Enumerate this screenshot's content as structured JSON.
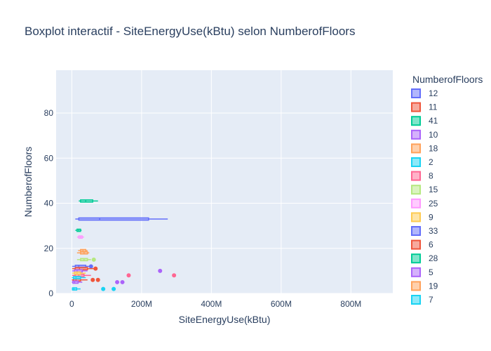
{
  "chart_data": {
    "type": "box",
    "title": "Boxplot interactif - SiteEnergyUse(kBtu) selon NumberofFloors",
    "xlabel": "SiteEnergyUse(kBtu)",
    "ylabel": "NumberofFloors",
    "xlim": [
      -45000000,
      920000000
    ],
    "ylim": [
      0,
      99
    ],
    "x_ticks": [
      {
        "value": 0,
        "label": "0"
      },
      {
        "value": 200000000,
        "label": "200M"
      },
      {
        "value": 400000000,
        "label": "400M"
      },
      {
        "value": 600000000,
        "label": "600M"
      },
      {
        "value": 800000000,
        "label": "800M"
      }
    ],
    "y_ticks": [
      {
        "value": 0,
        "label": "0"
      },
      {
        "value": 20,
        "label": "20"
      },
      {
        "value": 40,
        "label": "40"
      },
      {
        "value": 60,
        "label": "60"
      },
      {
        "value": 80,
        "label": "80"
      }
    ],
    "legend": {
      "title": "NumberofFloors",
      "placement": "right"
    },
    "series": [
      {
        "name": "12",
        "color": "#636efa",
        "floors": 12,
        "box": [
          10000000,
          20000000,
          40000000
        ],
        "whisker": [
          1000000,
          60000000
        ],
        "outliers": [
          55000000
        ]
      },
      {
        "name": "11",
        "color": "#ef553b",
        "floors": 11,
        "box": [
          10000000,
          22000000,
          45000000
        ],
        "whisker": [
          1000000,
          65000000
        ],
        "outliers": [
          68000000
        ]
      },
      {
        "name": "41",
        "color": "#00cc96",
        "floors": 41,
        "box": [
          25000000,
          40000000,
          60000000
        ],
        "whisker": [
          20000000,
          75000000
        ],
        "outliers": []
      },
      {
        "name": "10",
        "color": "#ab63fa",
        "floors": 10,
        "box": [
          8000000,
          15000000,
          30000000
        ],
        "whisker": [
          1000000,
          45000000
        ],
        "outliers": [
          253000000
        ]
      },
      {
        "name": "18",
        "color": "#ffa15a",
        "floors": 18,
        "box": [
          25000000,
          35000000,
          45000000
        ],
        "whisker": [
          15000000,
          50000000
        ],
        "outliers": []
      },
      {
        "name": "2",
        "color": "#19d3f3",
        "floors": 2,
        "box": [
          2000000,
          6000000,
          14000000
        ],
        "whisker": [
          0,
          25000000
        ],
        "outliers": [
          90000000,
          120000000
        ]
      },
      {
        "name": "8",
        "color": "#ff6692",
        "floors": 8,
        "box": [
          10000000,
          20000000,
          35000000
        ],
        "whisker": [
          1000000,
          55000000
        ],
        "outliers": [
          163000000,
          293000000
        ]
      },
      {
        "name": "15",
        "color": "#b6e880",
        "floors": 15,
        "box": [
          25000000,
          35000000,
          45000000
        ],
        "whisker": [
          15000000,
          55000000
        ],
        "outliers": [
          63000000
        ]
      },
      {
        "name": "25",
        "color": "#ff97ff",
        "floors": 25,
        "box": [
          20000000,
          25000000,
          30000000
        ],
        "whisker": [
          15000000,
          35000000
        ],
        "outliers": []
      },
      {
        "name": "9",
        "color": "#fecb52",
        "floors": 9,
        "box": [
          8000000,
          15000000,
          25000000
        ],
        "whisker": [
          1000000,
          40000000
        ],
        "outliers": []
      },
      {
        "name": "33",
        "color": "#636efa",
        "floors": 33,
        "box": [
          20000000,
          80000000,
          220000000
        ],
        "whisker": [
          10000000,
          275000000
        ],
        "outliers": []
      },
      {
        "name": "6",
        "color": "#ef553b",
        "floors": 6,
        "box": [
          5000000,
          12000000,
          25000000
        ],
        "whisker": [
          0,
          45000000
        ],
        "outliers": [
          60000000,
          75000000
        ]
      },
      {
        "name": "28",
        "color": "#00cc96",
        "floors": 28,
        "box": [
          15000000,
          20000000,
          25000000
        ],
        "whisker": [
          10000000,
          28000000
        ],
        "outliers": []
      },
      {
        "name": "5",
        "color": "#ab63fa",
        "floors": 5,
        "box": [
          3000000,
          8000000,
          18000000
        ],
        "whisker": [
          0,
          30000000
        ],
        "outliers": [
          130000000,
          145000000
        ]
      },
      {
        "name": "19",
        "color": "#ffa15a",
        "floors": 19,
        "box": [
          25000000,
          32000000,
          40000000
        ],
        "whisker": [
          18000000,
          45000000
        ],
        "outliers": []
      },
      {
        "name": "7",
        "color": "#19d3f3",
        "floors": 7,
        "box": [
          5000000,
          12000000,
          25000000
        ],
        "whisker": [
          0,
          40000000
        ],
        "outliers": []
      }
    ]
  }
}
